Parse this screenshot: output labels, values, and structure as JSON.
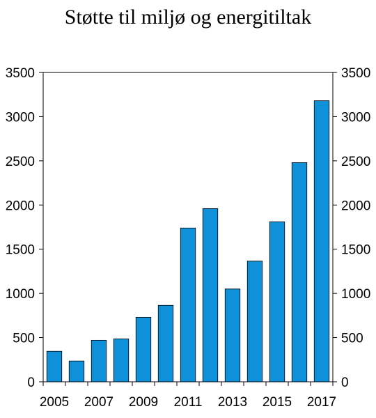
{
  "chart_data": {
    "type": "bar",
    "title": "Støtte til miljø og energitiltak",
    "xlabel": "",
    "ylabel": "",
    "categories": [
      "2005",
      "2006",
      "2007",
      "2008",
      "2009",
      "2010",
      "2011",
      "2012",
      "2013",
      "2014",
      "2015",
      "2016",
      "2017"
    ],
    "x_tick_labels": [
      "2005",
      "2007",
      "2009",
      "2011",
      "2013",
      "2015",
      "2017"
    ],
    "values": [
      345,
      235,
      470,
      485,
      730,
      865,
      1740,
      1960,
      1050,
      1365,
      1810,
      2480,
      3180
    ],
    "ylim": [
      0,
      3500
    ],
    "y_ticks": [
      0,
      500,
      1000,
      1500,
      2000,
      2500,
      3000,
      3500
    ],
    "secondary_y_axis": true,
    "grid": false,
    "legend": "none",
    "bar_color": "#1090d8"
  }
}
